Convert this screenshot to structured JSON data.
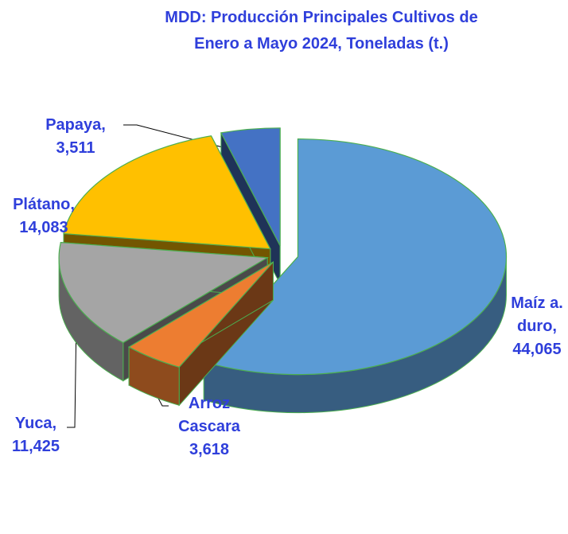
{
  "chart_data": {
    "type": "pie3d",
    "title": "MDD: Producción Principales Cultivos  de  Enero a Mayo 2024, Toneladas (t.)",
    "categories": [
      "Maíz a. duro,",
      "Arroz Cascara",
      "Yuca,",
      "Plátano,",
      "Papaya,"
    ],
    "values": [
      44065,
      3618,
      11425,
      14083,
      3511
    ],
    "value_labels": [
      "44,065",
      "3,618",
      "11,425",
      "14,083",
      "3,511"
    ],
    "colors": [
      "#5b9bd5",
      "#ed7d31",
      "#a5a5a5",
      "#ffc000",
      "#4472c4"
    ]
  }
}
